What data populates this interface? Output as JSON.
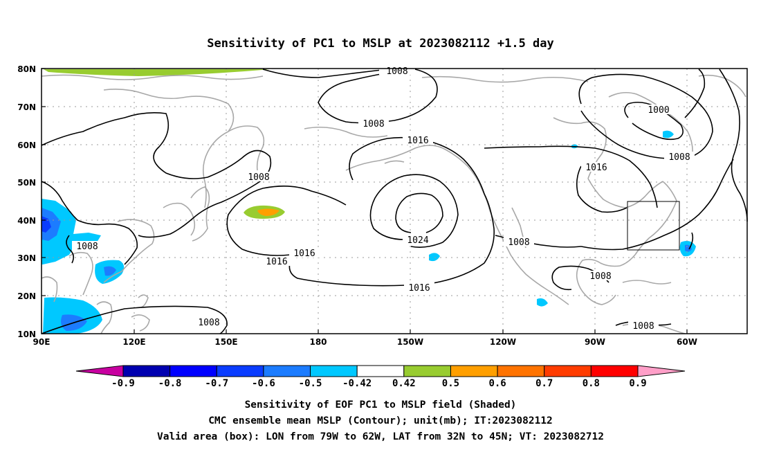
{
  "title": "Sensitivity of PC1 to MSLP at 2023082112 +1.5 day",
  "lat_ticks": [
    "80N",
    "70N",
    "60N",
    "50N",
    "40N",
    "30N",
    "20N",
    "10N"
  ],
  "lon_ticks": [
    "90E",
    "120E",
    "150E",
    "180",
    "150W",
    "120W",
    "90W",
    "60W"
  ],
  "contour_labels": {
    "top": "1008",
    "c1008_pacnw": "1008",
    "c1008_japan": "1008",
    "c1008_scs": "1008",
    "c1008_bottom": "1008",
    "c1016_alaska": "1016",
    "c1016_west_a": "1016",
    "c1016_west_b": "1016",
    "c1016_south": "1016",
    "c1024_high": "1024",
    "c1008_mexico": "1008",
    "c1008_gulf": "1008",
    "c1008_carib": "1008",
    "c1016_canada": "1016",
    "c1000_low": "1000",
    "c1008_labrador": "1008"
  },
  "colorbar": {
    "labels": [
      "-0.9",
      "-0.8",
      "-0.7",
      "-0.6",
      "-0.5",
      "-0.42",
      "0.42",
      "0.5",
      "0.6",
      "0.7",
      "0.8",
      "0.9"
    ],
    "colors": [
      "#0000b0",
      "#0000ff",
      "#0a3cff",
      "#1c7cff",
      "#00c8ff",
      "#ffffff",
      "#98cc30",
      "#ff9f00",
      "#ff7300",
      "#ff3c00",
      "#ff0000"
    ],
    "low_color": "#c800a0",
    "high_color": "#ff9fc8"
  },
  "footer": {
    "line1": "Sensitivity of EOF PC1 to MSLP field (Shaded)",
    "line2": "CMC ensemble mean MSLP (Contour); unit(mb); IT:2023082112",
    "line3": "Valid area (box): LON from 79W to 62W, LAT from 32N to 45N; VT: 2023082712"
  },
  "valid_box": {
    "lon_min": "79W",
    "lon_max": "62W",
    "lat_min": "32N",
    "lat_max": "45N"
  }
}
